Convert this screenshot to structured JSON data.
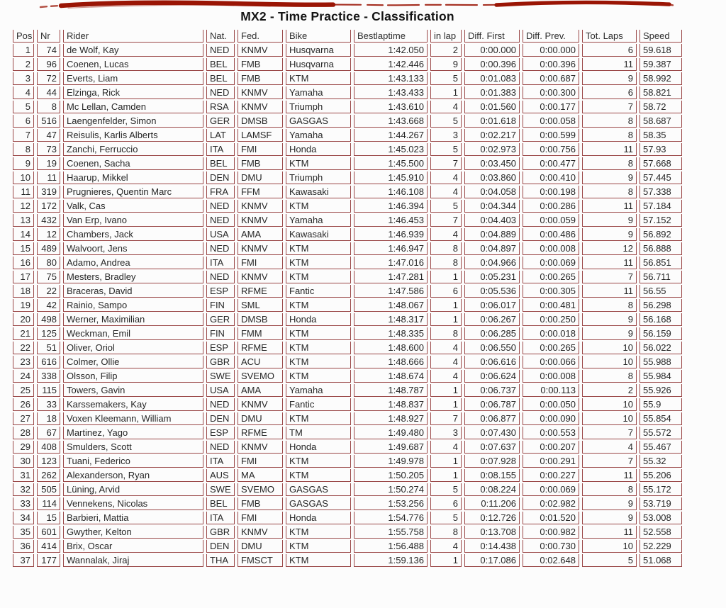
{
  "title": "MX2 - Time Practice - Classification",
  "colors": {
    "cell_border": "#9a4747",
    "marker_stroke": "#9a1505",
    "title_text": "#141414"
  },
  "decor": {
    "top_stroke": "hand-drawn red marker line across top of page"
  },
  "table": {
    "columns": [
      "Pos",
      "Nr",
      "Rider",
      "Nat.",
      "Fed.",
      "Bike",
      "Bestlaptime",
      "in lap",
      "Diff. First",
      "Diff. Prev.",
      "Tot. Laps",
      "Speed"
    ],
    "rows": [
      [
        "1",
        "74",
        "de Wolf, Kay",
        "NED",
        "KNMV",
        "Husqvarna",
        "1:42.050",
        "2",
        "0:00.000",
        "0:00.000",
        "6",
        "59.618"
      ],
      [
        "2",
        "96",
        "Coenen, Lucas",
        "BEL",
        "FMB",
        "Husqvarna",
        "1:42.446",
        "9",
        "0:00.396",
        "0:00.396",
        "11",
        "59.387"
      ],
      [
        "3",
        "72",
        "Everts, Liam",
        "BEL",
        "FMB",
        "KTM",
        "1:43.133",
        "5",
        "0:01.083",
        "0:00.687",
        "9",
        "58.992"
      ],
      [
        "4",
        "44",
        "Elzinga, Rick",
        "NED",
        "KNMV",
        "Yamaha",
        "1:43.433",
        "1",
        "0:01.383",
        "0:00.300",
        "6",
        "58.821"
      ],
      [
        "5",
        "8",
        "Mc Lellan, Camden",
        "RSA",
        "KNMV",
        "Triumph",
        "1:43.610",
        "4",
        "0:01.560",
        "0:00.177",
        "7",
        "58.72"
      ],
      [
        "6",
        "516",
        "Laengenfelder, Simon",
        "GER",
        "DMSB",
        "GASGAS",
        "1:43.668",
        "5",
        "0:01.618",
        "0:00.058",
        "8",
        "58.687"
      ],
      [
        "7",
        "47",
        "Reisulis, Karlis Alberts",
        "LAT",
        "LAMSF",
        "Yamaha",
        "1:44.267",
        "3",
        "0:02.217",
        "0:00.599",
        "8",
        "58.35"
      ],
      [
        "8",
        "73",
        "Zanchi, Ferruccio",
        "ITA",
        "FMI",
        "Honda",
        "1:45.023",
        "5",
        "0:02.973",
        "0:00.756",
        "11",
        "57.93"
      ],
      [
        "9",
        "19",
        "Coenen, Sacha",
        "BEL",
        "FMB",
        "KTM",
        "1:45.500",
        "7",
        "0:03.450",
        "0:00.477",
        "8",
        "57.668"
      ],
      [
        "10",
        "11",
        "Haarup, Mikkel",
        "DEN",
        "DMU",
        "Triumph",
        "1:45.910",
        "4",
        "0:03.860",
        "0:00.410",
        "9",
        "57.445"
      ],
      [
        "11",
        "319",
        "Prugnieres, Quentin Marc",
        "FRA",
        "FFM",
        "Kawasaki",
        "1:46.108",
        "4",
        "0:04.058",
        "0:00.198",
        "8",
        "57.338"
      ],
      [
        "12",
        "172",
        "Valk, Cas",
        "NED",
        "KNMV",
        "KTM",
        "1:46.394",
        "5",
        "0:04.344",
        "0:00.286",
        "11",
        "57.184"
      ],
      [
        "13",
        "432",
        "Van Erp, Ivano",
        "NED",
        "KNMV",
        "Yamaha",
        "1:46.453",
        "7",
        "0:04.403",
        "0:00.059",
        "9",
        "57.152"
      ],
      [
        "14",
        "12",
        "Chambers, Jack",
        "USA",
        "AMA",
        "Kawasaki",
        "1:46.939",
        "4",
        "0:04.889",
        "0:00.486",
        "9",
        "56.892"
      ],
      [
        "15",
        "489",
        "Walvoort, Jens",
        "NED",
        "KNMV",
        "KTM",
        "1:46.947",
        "8",
        "0:04.897",
        "0:00.008",
        "12",
        "56.888"
      ],
      [
        "16",
        "80",
        "Adamo, Andrea",
        "ITA",
        "FMI",
        "KTM",
        "1:47.016",
        "8",
        "0:04.966",
        "0:00.069",
        "11",
        "56.851"
      ],
      [
        "17",
        "75",
        "Mesters, Bradley",
        "NED",
        "KNMV",
        "KTM",
        "1:47.281",
        "1",
        "0:05.231",
        "0:00.265",
        "7",
        "56.711"
      ],
      [
        "18",
        "22",
        "Braceras, David",
        "ESP",
        "RFME",
        "Fantic",
        "1:47.586",
        "6",
        "0:05.536",
        "0:00.305",
        "11",
        "56.55"
      ],
      [
        "19",
        "42",
        "Rainio, Sampo",
        "FIN",
        "SML",
        "KTM",
        "1:48.067",
        "1",
        "0:06.017",
        "0:00.481",
        "8",
        "56.298"
      ],
      [
        "20",
        "498",
        "Werner, Maximilian",
        "GER",
        "DMSB",
        "Honda",
        "1:48.317",
        "1",
        "0:06.267",
        "0:00.250",
        "9",
        "56.168"
      ],
      [
        "21",
        "125",
        "Weckman, Emil",
        "FIN",
        "FMM",
        "KTM",
        "1:48.335",
        "8",
        "0:06.285",
        "0:00.018",
        "9",
        "56.159"
      ],
      [
        "22",
        "51",
        "Oliver, Oriol",
        "ESP",
        "RFME",
        "KTM",
        "1:48.600",
        "4",
        "0:06.550",
        "0:00.265",
        "10",
        "56.022"
      ],
      [
        "23",
        "616",
        "Colmer, Ollie",
        "GBR",
        "ACU",
        "KTM",
        "1:48.666",
        "4",
        "0:06.616",
        "0:00.066",
        "10",
        "55.988"
      ],
      [
        "24",
        "338",
        "Olsson, Filip",
        "SWE",
        "SVEMO",
        "KTM",
        "1:48.674",
        "4",
        "0:06.624",
        "0:00.008",
        "8",
        "55.984"
      ],
      [
        "25",
        "115",
        "Towers, Gavin",
        "USA",
        "AMA",
        "Yamaha",
        "1:48.787",
        "1",
        "0:06.737",
        "0:00.113",
        "2",
        "55.926"
      ],
      [
        "26",
        "33",
        "Karssemakers, Kay",
        "NED",
        "KNMV",
        "Fantic",
        "1:48.837",
        "1",
        "0:06.787",
        "0:00.050",
        "10",
        "55.9"
      ],
      [
        "27",
        "18",
        "Voxen Kleemann, William",
        "DEN",
        "DMU",
        "KTM",
        "1:48.927",
        "7",
        "0:06.877",
        "0:00.090",
        "10",
        "55.854"
      ],
      [
        "28",
        "67",
        "Martinez, Yago",
        "ESP",
        "RFME",
        "TM",
        "1:49.480",
        "3",
        "0:07.430",
        "0:00.553",
        "7",
        "55.572"
      ],
      [
        "29",
        "408",
        "Smulders, Scott",
        "NED",
        "KNMV",
        "Honda",
        "1:49.687",
        "4",
        "0:07.637",
        "0:00.207",
        "4",
        "55.467"
      ],
      [
        "30",
        "123",
        "Tuani, Federico",
        "ITA",
        "FMI",
        "KTM",
        "1:49.978",
        "1",
        "0:07.928",
        "0:00.291",
        "7",
        "55.32"
      ],
      [
        "31",
        "262",
        "Alexanderson, Ryan",
        "AUS",
        "MA",
        "KTM",
        "1:50.205",
        "1",
        "0:08.155",
        "0:00.227",
        "11",
        "55.206"
      ],
      [
        "32",
        "505",
        "Lüning, Arvid",
        "SWE",
        "SVEMO",
        "GASGAS",
        "1:50.274",
        "5",
        "0:08.224",
        "0:00.069",
        "8",
        "55.172"
      ],
      [
        "33",
        "114",
        "Vennekens, Nicolas",
        "BEL",
        "FMB",
        "GASGAS",
        "1:53.256",
        "6",
        "0:11.206",
        "0:02.982",
        "9",
        "53.719"
      ],
      [
        "34",
        "15",
        "Barbieri, Mattia",
        "ITA",
        "FMI",
        "Honda",
        "1:54.776",
        "5",
        "0:12.726",
        "0:01.520",
        "9",
        "53.008"
      ],
      [
        "35",
        "601",
        "Gwyther, Kelton",
        "GBR",
        "KNMV",
        "KTM",
        "1:55.758",
        "8",
        "0:13.708",
        "0:00.982",
        "11",
        "52.558"
      ],
      [
        "36",
        "414",
        "Brix, Oscar",
        "DEN",
        "DMU",
        "KTM",
        "1:56.488",
        "4",
        "0:14.438",
        "0:00.730",
        "10",
        "52.229"
      ],
      [
        "37",
        "177",
        "Wannalak, Jiraj",
        "THA",
        "FMSCT",
        "KTM",
        "1:59.136",
        "1",
        "0:17.086",
        "0:02.648",
        "5",
        "51.068"
      ]
    ]
  }
}
